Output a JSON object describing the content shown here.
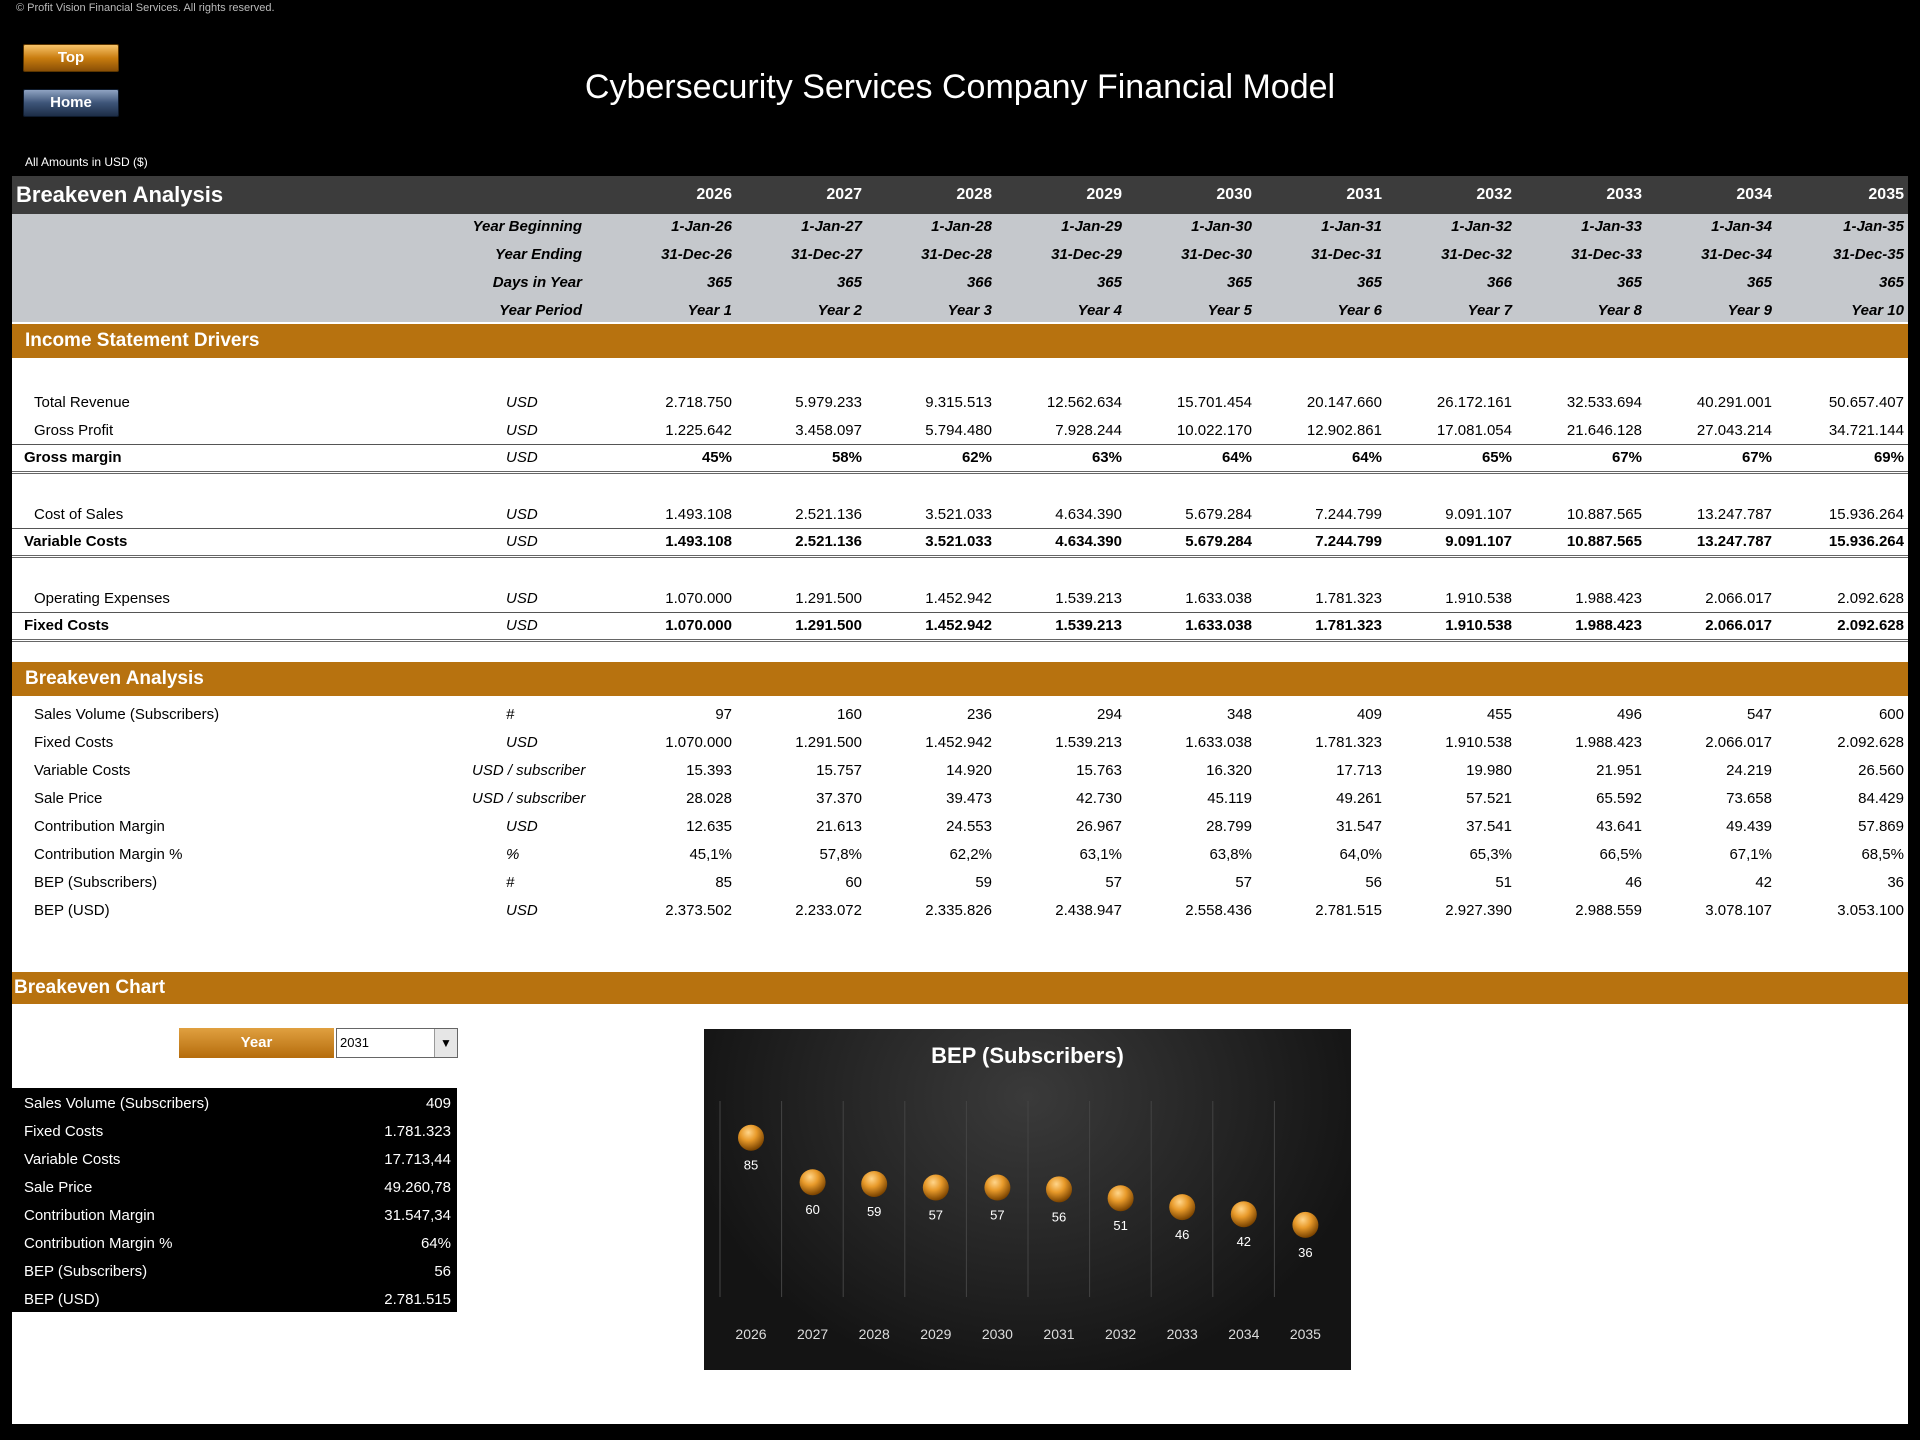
{
  "copyright": "© Profit Vision Financial Services. All rights reserved.",
  "buttons": {
    "top": "Top",
    "home": "Home"
  },
  "title": "Cybersecurity Services Company Financial Model",
  "amounts_note": "All Amounts in  USD ($)",
  "header": {
    "title": "Breakeven Analysis",
    "years": [
      "2026",
      "2027",
      "2028",
      "2029",
      "2030",
      "2031",
      "2032",
      "2033",
      "2034",
      "2035"
    ]
  },
  "dates": {
    "labels": [
      "Year Beginning",
      "Year Ending",
      "Days in Year",
      "Year Period"
    ],
    "rows": [
      [
        "1-Jan-26",
        "1-Jan-27",
        "1-Jan-28",
        "1-Jan-29",
        "1-Jan-30",
        "1-Jan-31",
        "1-Jan-32",
        "1-Jan-33",
        "1-Jan-34",
        "1-Jan-35"
      ],
      [
        "31-Dec-26",
        "31-Dec-27",
        "31-Dec-28",
        "31-Dec-29",
        "31-Dec-30",
        "31-Dec-31",
        "31-Dec-32",
        "31-Dec-33",
        "31-Dec-34",
        "31-Dec-35"
      ],
      [
        "365",
        "365",
        "366",
        "365",
        "365",
        "365",
        "366",
        "365",
        "365",
        "365"
      ],
      [
        "Year 1",
        "Year 2",
        "Year 3",
        "Year 4",
        "Year 5",
        "Year 6",
        "Year 7",
        "Year 8",
        "Year 9",
        "Year 10"
      ]
    ]
  },
  "income": {
    "title": "Income Statement Drivers",
    "rows": [
      {
        "label": "Total Revenue",
        "unit": "USD",
        "bold": false,
        "values": [
          "2.718.750",
          "5.979.233",
          "9.315.513",
          "12.562.634",
          "15.701.454",
          "20.147.660",
          "26.172.161",
          "32.533.694",
          "40.291.001",
          "50.657.407"
        ]
      },
      {
        "label": "Gross Profit",
        "unit": "USD",
        "bold": false,
        "values": [
          "1.225.642",
          "3.458.097",
          "5.794.480",
          "7.928.244",
          "10.022.170",
          "12.902.861",
          "17.081.054",
          "21.646.128",
          "27.043.214",
          "34.721.144"
        ]
      },
      {
        "label": "Gross margin",
        "unit": "USD",
        "bold": true,
        "values": [
          "45%",
          "58%",
          "62%",
          "63%",
          "64%",
          "64%",
          "65%",
          "67%",
          "67%",
          "69%"
        ]
      },
      {
        "label": "Cost of Sales",
        "unit": "USD",
        "bold": false,
        "values": [
          "1.493.108",
          "2.521.136",
          "3.521.033",
          "4.634.390",
          "5.679.284",
          "7.244.799",
          "9.091.107",
          "10.887.565",
          "13.247.787",
          "15.936.264"
        ]
      },
      {
        "label": "Variable Costs",
        "unit": "USD",
        "bold": true,
        "values": [
          "1.493.108",
          "2.521.136",
          "3.521.033",
          "4.634.390",
          "5.679.284",
          "7.244.799",
          "9.091.107",
          "10.887.565",
          "13.247.787",
          "15.936.264"
        ]
      },
      {
        "label": "Operating Expenses",
        "unit": "USD",
        "bold": false,
        "values": [
          "1.070.000",
          "1.291.500",
          "1.452.942",
          "1.539.213",
          "1.633.038",
          "1.781.323",
          "1.910.538",
          "1.988.423",
          "2.066.017",
          "2.092.628"
        ]
      },
      {
        "label": "Fixed Costs",
        "unit": "USD",
        "bold": true,
        "values": [
          "1.070.000",
          "1.291.500",
          "1.452.942",
          "1.539.213",
          "1.633.038",
          "1.781.323",
          "1.910.538",
          "1.988.423",
          "2.066.017",
          "2.092.628"
        ]
      }
    ]
  },
  "breakeven": {
    "title": "Breakeven Analysis",
    "rows": [
      {
        "label": "Sales Volume (Subscribers)",
        "unit": "#",
        "values": [
          "97",
          "160",
          "236",
          "294",
          "348",
          "409",
          "455",
          "496",
          "547",
          "600"
        ]
      },
      {
        "label": "Fixed Costs",
        "unit": "USD",
        "values": [
          "1.070.000",
          "1.291.500",
          "1.452.942",
          "1.539.213",
          "1.633.038",
          "1.781.323",
          "1.910.538",
          "1.988.423",
          "2.066.017",
          "2.092.628"
        ]
      },
      {
        "label": "Variable Costs",
        "unit": "USD / subscriber",
        "values": [
          "15.393",
          "15.757",
          "14.920",
          "15.763",
          "16.320",
          "17.713",
          "19.980",
          "21.951",
          "24.219",
          "26.560"
        ]
      },
      {
        "label": "Sale Price",
        "unit": "USD / subscriber",
        "values": [
          "28.028",
          "37.370",
          "39.473",
          "42.730",
          "45.119",
          "49.261",
          "57.521",
          "65.592",
          "73.658",
          "84.429"
        ]
      },
      {
        "label": "Contribution Margin",
        "unit": "USD",
        "values": [
          "12.635",
          "21.613",
          "24.553",
          "26.967",
          "28.799",
          "31.547",
          "37.541",
          "43.641",
          "49.439",
          "57.869"
        ]
      },
      {
        "label": "Contribution Margin %",
        "unit": "%",
        "values": [
          "45,1%",
          "57,8%",
          "62,2%",
          "63,1%",
          "63,8%",
          "64,0%",
          "65,3%",
          "66,5%",
          "67,1%",
          "68,5%"
        ]
      },
      {
        "label": "BEP (Subscribers)",
        "unit": "#",
        "values": [
          "85",
          "60",
          "59",
          "57",
          "57",
          "56",
          "51",
          "46",
          "42",
          "36"
        ]
      },
      {
        "label": "BEP (USD)",
        "unit": "USD",
        "values": [
          "2.373.502",
          "2.233.072",
          "2.335.826",
          "2.438.947",
          "2.558.436",
          "2.781.515",
          "2.927.390",
          "2.988.559",
          "3.078.107",
          "3.053.100"
        ]
      }
    ]
  },
  "chart_section": {
    "title": "Breakeven Chart",
    "year_label": "Year",
    "selected_year": "2031",
    "summary": [
      {
        "label": "Sales Volume (Subscribers)",
        "value": "409"
      },
      {
        "label": "Fixed Costs",
        "value": "1.781.323"
      },
      {
        "label": "Variable Costs",
        "value": "17.713,44"
      },
      {
        "label": "Sale Price",
        "value": "49.260,78"
      },
      {
        "label": "Contribution Margin",
        "value": "31.547,34"
      },
      {
        "label": "Contribution Margin %",
        "value": "64%"
      },
      {
        "label": "BEP (Subscribers)",
        "value": "56"
      },
      {
        "label": "BEP (USD)",
        "value": "2.781.515"
      }
    ]
  },
  "colors": {
    "band": "#b7720f",
    "header": "#3c3c3c",
    "dates_bg": "#c5c8cc",
    "marker": "#e89a2a"
  },
  "chart_data": {
    "type": "scatter",
    "title": "BEP (Subscribers)",
    "x": [
      "2026",
      "2027",
      "2028",
      "2029",
      "2030",
      "2031",
      "2032",
      "2033",
      "2034",
      "2035"
    ],
    "values": [
      85,
      60,
      59,
      57,
      57,
      56,
      51,
      46,
      42,
      36
    ],
    "ylim": [
      0,
      100
    ],
    "grid": "vertical",
    "legend": "none"
  }
}
